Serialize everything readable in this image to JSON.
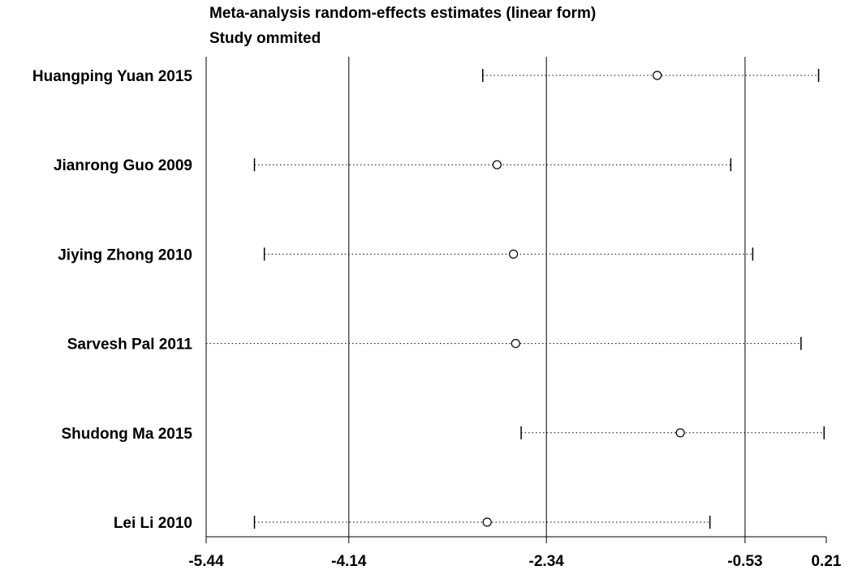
{
  "chart_data": {
    "type": "forest",
    "title": "Meta-analysis random-effects estimates (linear form)",
    "subtitle": "Study ommited",
    "xlim": [
      -5.44,
      0.21
    ],
    "ticks": [
      -5.44,
      -4.14,
      -2.34,
      -0.53,
      0.21
    ],
    "tick_labels": [
      "-5.44",
      "-4.14",
      "-2.34",
      "-0.53",
      "0.21"
    ],
    "reference_lines": [
      -4.14,
      -2.34,
      -0.53
    ],
    "studies": [
      {
        "label": "Huangping Yuan 2015",
        "estimate": -1.33,
        "lower": -2.92,
        "upper": 0.14,
        "lower_cap": true
      },
      {
        "label": "Jianrong Guo 2009",
        "estimate": -2.79,
        "lower": -5.0,
        "upper": -0.66,
        "lower_cap": true
      },
      {
        "label": "Jiying Zhong 2010",
        "estimate": -2.64,
        "lower": -4.91,
        "upper": -0.46,
        "lower_cap": true
      },
      {
        "label": "Sarvesh Pal 2011",
        "estimate": -2.62,
        "lower": -5.44,
        "upper": -0.02,
        "lower_cap": false
      },
      {
        "label": "Shudong Ma 2015",
        "estimate": -1.12,
        "lower": -2.57,
        "upper": 0.19,
        "lower_cap": true
      },
      {
        "label": "Lei Li 2010",
        "estimate": -2.88,
        "lower": -5.0,
        "upper": -0.85,
        "lower_cap": true
      }
    ]
  }
}
